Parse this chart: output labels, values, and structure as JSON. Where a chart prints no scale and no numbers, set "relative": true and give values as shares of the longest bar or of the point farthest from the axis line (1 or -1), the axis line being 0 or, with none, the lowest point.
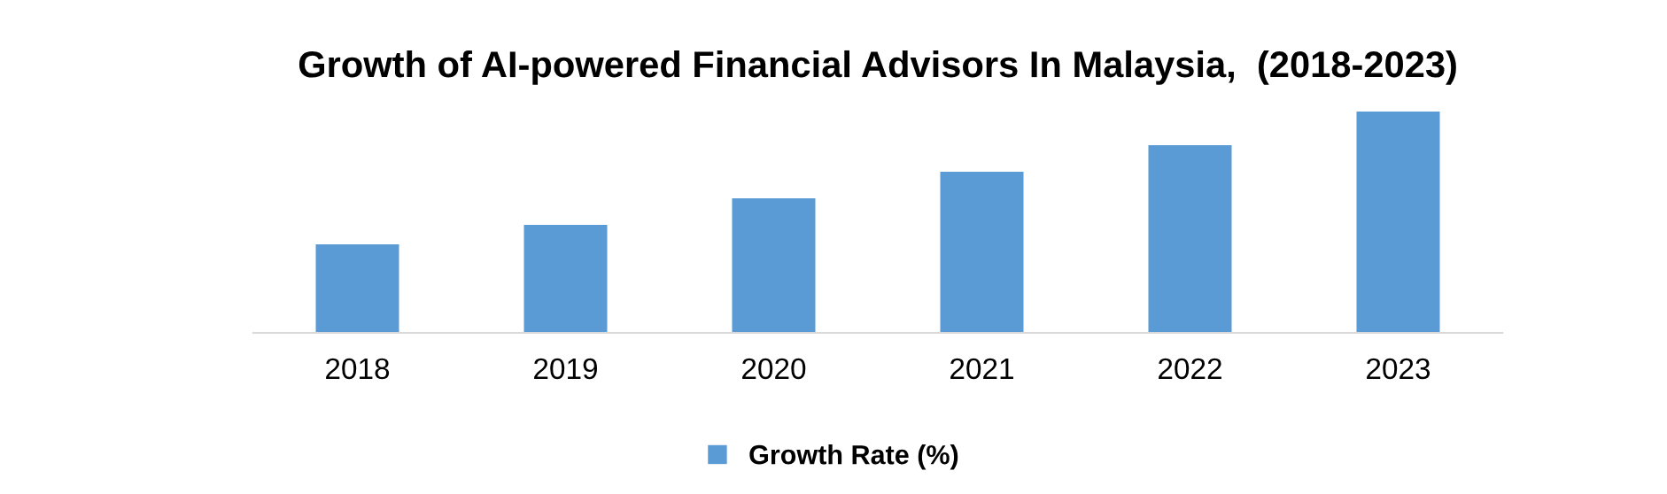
{
  "chart_data": {
    "type": "bar",
    "title": "Growth of AI-powered Financial Advisors In Malaysia,  (2018-2023)",
    "categories": [
      "2018",
      "2019",
      "2020",
      "2021",
      "2022",
      "2023"
    ],
    "relative": true,
    "series": [
      {
        "name": "Growth Rate (%)",
        "color": "#5b9bd5",
        "values": [
          0.4,
          0.488,
          0.608,
          0.728,
          0.848,
          1.0
        ]
      }
    ],
    "legend": "bottom"
  }
}
